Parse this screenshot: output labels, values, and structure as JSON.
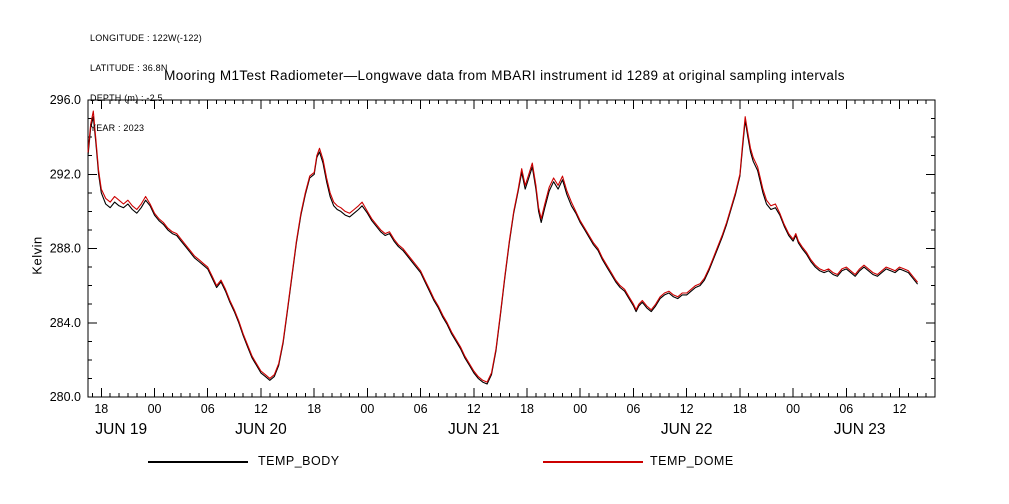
{
  "header": {
    "lines": [
      "LONGITUDE : 122W(-122)",
      "LATITUDE : 36.8N",
      "DEPTH (m) : -2.5",
      "YEAR : 2023"
    ]
  },
  "chart_data": {
    "type": "line",
    "title": "Mooring M1Test Radiometer—Longwave data from MBARI instrument id 1289 at original sampling intervals",
    "xlabel": "",
    "ylabel": "Kelvin",
    "ylim": [
      280.0,
      296.0
    ],
    "yticks": {
      "values": [
        280,
        284,
        288,
        292,
        296
      ],
      "labels": [
        "280.0",
        "284.0",
        "288.0",
        "292.0",
        "296.0"
      ]
    },
    "x_range_hours": [
      16.5,
      112.0
    ],
    "xticks": {
      "hours": [
        18,
        24,
        30,
        36,
        42,
        48,
        54,
        60,
        66,
        72,
        78,
        84,
        90,
        96,
        102,
        108
      ],
      "labels": [
        "18",
        "00",
        "06",
        "12",
        "18",
        "00",
        "06",
        "12",
        "18",
        "00",
        "06",
        "12",
        "18",
        "00",
        "06",
        "12"
      ]
    },
    "day_labels": [
      {
        "label": "JUN 19",
        "center_hour": 20.25
      },
      {
        "label": "JUN 20",
        "center_hour": 36
      },
      {
        "label": "JUN 21",
        "center_hour": 60
      },
      {
        "label": "JUN 22",
        "center_hour": 84
      },
      {
        "label": "JUN 23",
        "center_hour": 103.5
      }
    ],
    "grid": false,
    "legend_position": "bottom",
    "series": [
      {
        "name": "TEMP_BODY",
        "color": "#000000"
      },
      {
        "name": "TEMP_DOME",
        "color": "#cc0000"
      }
    ],
    "columns": [
      "hour_from_jun19_0000",
      "TEMP_BODY",
      "TEMP_DOME"
    ],
    "points": [
      [
        16.5,
        293.0,
        293.2
      ],
      [
        16.8,
        294.5,
        294.7
      ],
      [
        17.1,
        295.1,
        295.4
      ],
      [
        17.4,
        293.6,
        293.8
      ],
      [
        17.7,
        292.0,
        292.2
      ],
      [
        18.0,
        291.0,
        291.2
      ],
      [
        18.5,
        290.4,
        290.7
      ],
      [
        19.0,
        290.2,
        290.5
      ],
      [
        19.5,
        290.5,
        290.8
      ],
      [
        20.0,
        290.3,
        290.6
      ],
      [
        20.5,
        290.2,
        290.4
      ],
      [
        21.0,
        290.4,
        290.6
      ],
      [
        21.5,
        290.1,
        290.3
      ],
      [
        22.0,
        289.9,
        290.1
      ],
      [
        22.5,
        290.2,
        290.4
      ],
      [
        23.0,
        290.6,
        290.8
      ],
      [
        23.5,
        290.3,
        290.4
      ],
      [
        24.0,
        289.8,
        289.9
      ],
      [
        24.5,
        289.5,
        289.6
      ],
      [
        25.0,
        289.3,
        289.4
      ],
      [
        25.5,
        289.0,
        289.1
      ],
      [
        26.0,
        288.8,
        288.9
      ],
      [
        26.5,
        288.7,
        288.8
      ],
      [
        27.0,
        288.4,
        288.5
      ],
      [
        27.5,
        288.1,
        288.2
      ],
      [
        28.0,
        287.8,
        287.9
      ],
      [
        28.5,
        287.5,
        287.6
      ],
      [
        29.0,
        287.3,
        287.4
      ],
      [
        29.5,
        287.1,
        287.2
      ],
      [
        30.0,
        286.9,
        287.0
      ],
      [
        30.5,
        286.4,
        286.5
      ],
      [
        31.0,
        285.9,
        286.0
      ],
      [
        31.5,
        286.2,
        286.3
      ],
      [
        32.0,
        285.7,
        285.8
      ],
      [
        32.5,
        285.1,
        285.2
      ],
      [
        33.0,
        284.6,
        284.7
      ],
      [
        33.5,
        284.0,
        284.1
      ],
      [
        34.0,
        283.3,
        283.4
      ],
      [
        34.5,
        282.7,
        282.8
      ],
      [
        35.0,
        282.1,
        282.2
      ],
      [
        35.5,
        281.7,
        281.8
      ],
      [
        36.0,
        281.3,
        281.4
      ],
      [
        36.5,
        281.1,
        281.2
      ],
      [
        37.0,
        280.9,
        281.0
      ],
      [
        37.5,
        281.1,
        281.2
      ],
      [
        38.0,
        281.7,
        281.8
      ],
      [
        38.5,
        282.9,
        283.0
      ],
      [
        39.0,
        284.7,
        284.8
      ],
      [
        39.5,
        286.5,
        286.6
      ],
      [
        40.0,
        288.3,
        288.4
      ],
      [
        40.5,
        289.8,
        289.9
      ],
      [
        41.0,
        290.9,
        291.0
      ],
      [
        41.5,
        291.8,
        291.9
      ],
      [
        42.0,
        292.0,
        292.1
      ],
      [
        42.3,
        292.9,
        293.0
      ],
      [
        42.6,
        293.2,
        293.4
      ],
      [
        43.0,
        292.6,
        292.8
      ],
      [
        43.4,
        291.6,
        291.8
      ],
      [
        43.8,
        290.8,
        291.0
      ],
      [
        44.2,
        290.3,
        290.5
      ],
      [
        44.6,
        290.1,
        290.3
      ],
      [
        45.0,
        290.0,
        290.2
      ],
      [
        45.5,
        289.8,
        290.0
      ],
      [
        46.0,
        289.7,
        289.9
      ],
      [
        46.5,
        289.9,
        290.1
      ],
      [
        47.0,
        290.1,
        290.3
      ],
      [
        47.4,
        290.3,
        290.5
      ],
      [
        48.0,
        289.9,
        290.0
      ],
      [
        48.5,
        289.5,
        289.6
      ],
      [
        49.0,
        289.2,
        289.3
      ],
      [
        49.5,
        288.9,
        289.0
      ],
      [
        50.0,
        288.7,
        288.8
      ],
      [
        50.5,
        288.8,
        288.9
      ],
      [
        51.0,
        288.4,
        288.5
      ],
      [
        51.5,
        288.1,
        288.2
      ],
      [
        52.0,
        287.9,
        288.0
      ],
      [
        52.5,
        287.6,
        287.7
      ],
      [
        53.0,
        287.3,
        287.4
      ],
      [
        53.5,
        287.0,
        287.1
      ],
      [
        54.0,
        286.7,
        286.8
      ],
      [
        54.5,
        286.2,
        286.3
      ],
      [
        55.0,
        285.7,
        285.8
      ],
      [
        55.5,
        285.2,
        285.3
      ],
      [
        56.0,
        284.8,
        284.9
      ],
      [
        56.5,
        284.3,
        284.4
      ],
      [
        57.0,
        283.9,
        284.0
      ],
      [
        57.5,
        283.4,
        283.5
      ],
      [
        58.0,
        283.0,
        283.1
      ],
      [
        58.5,
        282.6,
        282.7
      ],
      [
        59.0,
        282.1,
        282.2
      ],
      [
        59.5,
        281.7,
        281.8
      ],
      [
        60.0,
        281.3,
        281.4
      ],
      [
        60.5,
        281.0,
        281.1
      ],
      [
        61.0,
        280.8,
        280.9
      ],
      [
        61.5,
        280.7,
        280.8
      ],
      [
        62.0,
        281.2,
        281.3
      ],
      [
        62.5,
        282.5,
        282.6
      ],
      [
        63.0,
        284.4,
        284.5
      ],
      [
        63.5,
        286.4,
        286.5
      ],
      [
        64.0,
        288.3,
        288.4
      ],
      [
        64.5,
        289.9,
        290.0
      ],
      [
        65.0,
        291.1,
        291.2
      ],
      [
        65.4,
        292.1,
        292.3
      ],
      [
        65.8,
        291.2,
        291.4
      ],
      [
        66.2,
        291.8,
        292.0
      ],
      [
        66.6,
        292.4,
        292.6
      ],
      [
        67.0,
        291.2,
        291.4
      ],
      [
        67.3,
        290.0,
        290.2
      ],
      [
        67.6,
        289.4,
        289.6
      ],
      [
        68.0,
        290.2,
        290.4
      ],
      [
        68.5,
        291.1,
        291.3
      ],
      [
        69.0,
        291.6,
        291.8
      ],
      [
        69.5,
        291.2,
        291.4
      ],
      [
        70.0,
        291.7,
        291.9
      ],
      [
        70.5,
        290.9,
        291.1
      ],
      [
        71.0,
        290.3,
        290.5
      ],
      [
        71.5,
        289.9,
        290.0
      ],
      [
        72.0,
        289.4,
        289.5
      ],
      [
        72.5,
        289.0,
        289.1
      ],
      [
        73.0,
        288.6,
        288.7
      ],
      [
        73.5,
        288.2,
        288.3
      ],
      [
        74.0,
        287.9,
        288.0
      ],
      [
        74.5,
        287.4,
        287.5
      ],
      [
        75.0,
        287.0,
        287.1
      ],
      [
        75.5,
        286.6,
        286.7
      ],
      [
        76.0,
        286.2,
        286.3
      ],
      [
        76.5,
        285.9,
        286.0
      ],
      [
        77.0,
        285.7,
        285.8
      ],
      [
        77.5,
        285.3,
        285.4
      ],
      [
        78.0,
        284.9,
        285.0
      ],
      [
        78.3,
        284.6,
        284.7
      ],
      [
        78.6,
        284.9,
        285.0
      ],
      [
        79.0,
        285.1,
        285.2
      ],
      [
        79.5,
        284.8,
        284.9
      ],
      [
        80.0,
        284.6,
        284.7
      ],
      [
        80.5,
        284.9,
        285.0
      ],
      [
        81.0,
        285.3,
        285.4
      ],
      [
        81.5,
        285.5,
        285.6
      ],
      [
        82.0,
        285.6,
        285.7
      ],
      [
        82.5,
        285.4,
        285.5
      ],
      [
        83.0,
        285.3,
        285.4
      ],
      [
        83.5,
        285.5,
        285.6
      ],
      [
        84.0,
        285.5,
        285.6
      ],
      [
        84.5,
        285.7,
        285.8
      ],
      [
        85.0,
        285.9,
        286.0
      ],
      [
        85.5,
        286.0,
        286.1
      ],
      [
        86.0,
        286.3,
        286.4
      ],
      [
        86.5,
        286.8,
        286.9
      ],
      [
        87.0,
        287.4,
        287.5
      ],
      [
        87.5,
        288.0,
        288.1
      ],
      [
        88.0,
        288.6,
        288.7
      ],
      [
        88.5,
        289.3,
        289.4
      ],
      [
        89.0,
        290.1,
        290.2
      ],
      [
        89.5,
        290.9,
        291.0
      ],
      [
        90.0,
        291.9,
        292.0
      ],
      [
        90.3,
        293.4,
        293.6
      ],
      [
        90.6,
        294.9,
        295.1
      ],
      [
        90.9,
        294.0,
        294.2
      ],
      [
        91.2,
        293.2,
        293.4
      ],
      [
        91.5,
        292.7,
        292.9
      ],
      [
        92.0,
        292.2,
        292.4
      ],
      [
        92.3,
        291.6,
        291.8
      ],
      [
        92.6,
        291.0,
        291.2
      ],
      [
        93.0,
        290.4,
        290.6
      ],
      [
        93.5,
        290.1,
        290.3
      ],
      [
        94.0,
        290.2,
        290.4
      ],
      [
        94.5,
        289.8,
        289.9
      ],
      [
        95.0,
        289.2,
        289.3
      ],
      [
        95.5,
        288.7,
        288.8
      ],
      [
        96.0,
        288.4,
        288.5
      ],
      [
        96.3,
        288.7,
        288.8
      ],
      [
        96.6,
        288.3,
        288.4
      ],
      [
        97.0,
        288.0,
        288.1
      ],
      [
        97.5,
        287.7,
        287.8
      ],
      [
        98.0,
        287.3,
        287.4
      ],
      [
        98.5,
        287.0,
        287.1
      ],
      [
        99.0,
        286.8,
        286.9
      ],
      [
        99.5,
        286.7,
        286.8
      ],
      [
        100.0,
        286.8,
        286.9
      ],
      [
        100.5,
        286.6,
        286.7
      ],
      [
        101.0,
        286.5,
        286.6
      ],
      [
        101.5,
        286.8,
        286.9
      ],
      [
        102.0,
        286.9,
        287.0
      ],
      [
        102.5,
        286.7,
        286.8
      ],
      [
        103.0,
        286.5,
        286.6
      ],
      [
        103.5,
        286.8,
        286.9
      ],
      [
        104.0,
        287.0,
        287.1
      ],
      [
        104.5,
        286.8,
        286.9
      ],
      [
        105.0,
        286.6,
        286.7
      ],
      [
        105.5,
        286.5,
        286.6
      ],
      [
        106.0,
        286.7,
        286.8
      ],
      [
        106.5,
        286.9,
        287.0
      ],
      [
        107.0,
        286.8,
        286.9
      ],
      [
        107.5,
        286.7,
        286.8
      ],
      [
        108.0,
        286.9,
        287.0
      ],
      [
        108.5,
        286.8,
        286.9
      ],
      [
        109.0,
        286.7,
        286.8
      ],
      [
        109.5,
        286.4,
        286.5
      ],
      [
        110.0,
        286.1,
        286.2
      ]
    ]
  }
}
